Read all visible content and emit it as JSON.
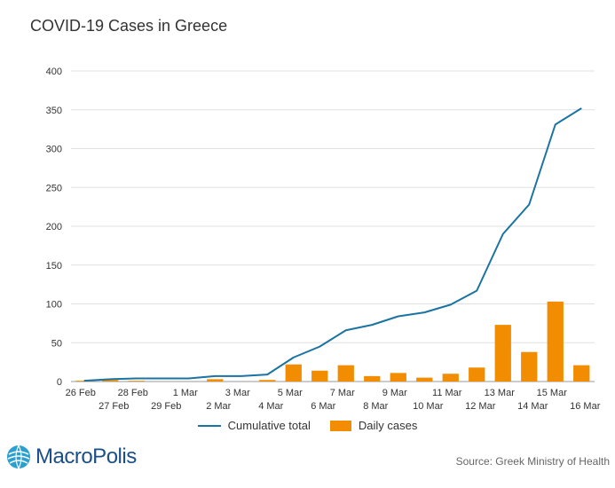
{
  "chart_data": {
    "type": "bar+line",
    "title": "COVID-19 Cases in Greece",
    "categories": [
      "26 Feb",
      "27 Feb",
      "28 Feb",
      "29 Feb",
      "1 Mar",
      "2 Mar",
      "3 Mar",
      "4 Mar",
      "5 Mar",
      "6 Mar",
      "7 Mar",
      "8 Mar",
      "9 Mar",
      "10 Mar",
      "11 Mar",
      "12 Mar",
      "13 Mar",
      "14 Mar",
      "15 Mar",
      "16 Mar"
    ],
    "series": [
      {
        "name": "Cumulative total",
        "type": "line",
        "color": "#1a73a0",
        "values": [
          1,
          3,
          4,
          4,
          4,
          7,
          7,
          9,
          31,
          45,
          66,
          73,
          84,
          89,
          99,
          117,
          190,
          228,
          331,
          352
        ]
      },
      {
        "name": "Daily cases",
        "type": "bar",
        "color": "#f28c00",
        "values": [
          1,
          2,
          1,
          0,
          0,
          3,
          0,
          2,
          22,
          14,
          21,
          7,
          11,
          5,
          10,
          18,
          73,
          38,
          103,
          21
        ]
      }
    ],
    "ylim": [
      0,
      400
    ],
    "yticks": [
      0,
      50,
      100,
      150,
      200,
      250,
      300,
      350,
      400
    ],
    "xlabel": "",
    "ylabel": "",
    "grid": true,
    "legend": "bottom-center"
  },
  "footer": {
    "logo_text": "MacroPolis",
    "source": "Source: Greek Ministry of Health"
  },
  "colors": {
    "grid": "#e0e0e0",
    "logo": "#1a4f8a"
  }
}
